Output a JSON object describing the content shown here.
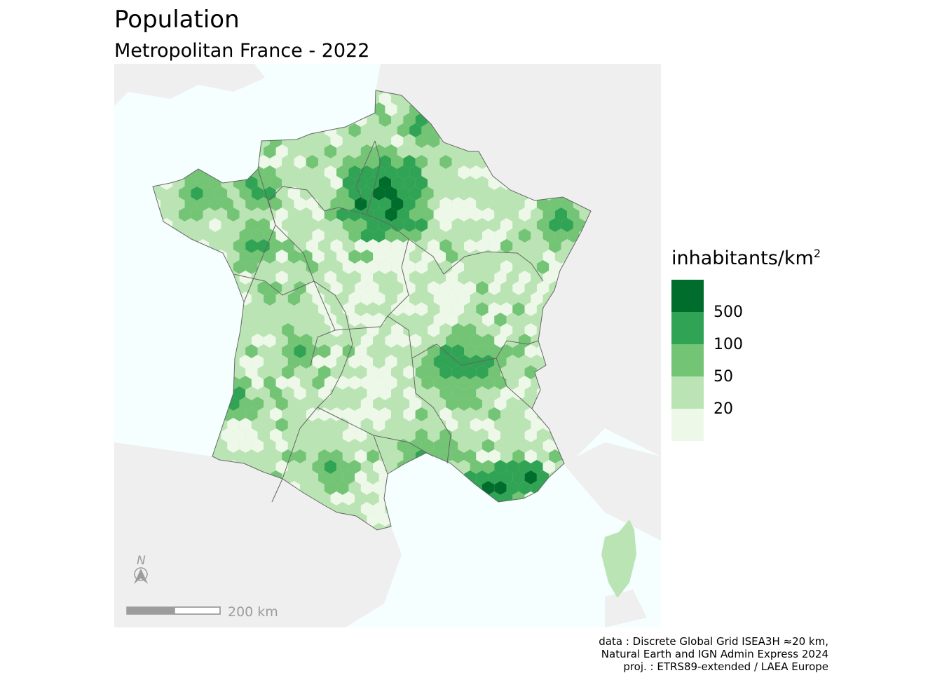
{
  "title": "Population",
  "subtitle": "Metropolitan France - 2022",
  "legend": {
    "title_main": "inhabitants/km",
    "title_sup": "2",
    "classes": [
      {
        "color": "#006d2c"
      },
      {
        "color": "#31a354"
      },
      {
        "color": "#74c476"
      },
      {
        "color": "#bae4b3"
      },
      {
        "color": "#edf8e9"
      }
    ],
    "breaks": [
      "500",
      "100",
      "50",
      "20"
    ]
  },
  "north_arrow": {
    "letter": "N"
  },
  "scale_bar": {
    "label": "200 km"
  },
  "credits": {
    "line1": "data : Discrete Global Grid ISEA3H ≈20 km,",
    "line2": "Natural Earth and IGN Admin Express 2024",
    "line3": "proj. : ETRS89-extended / LAEA Europe"
  },
  "colors": {
    "sea": "#f5ffff",
    "land_outside": "#efefef",
    "region_border": "#666666"
  }
}
